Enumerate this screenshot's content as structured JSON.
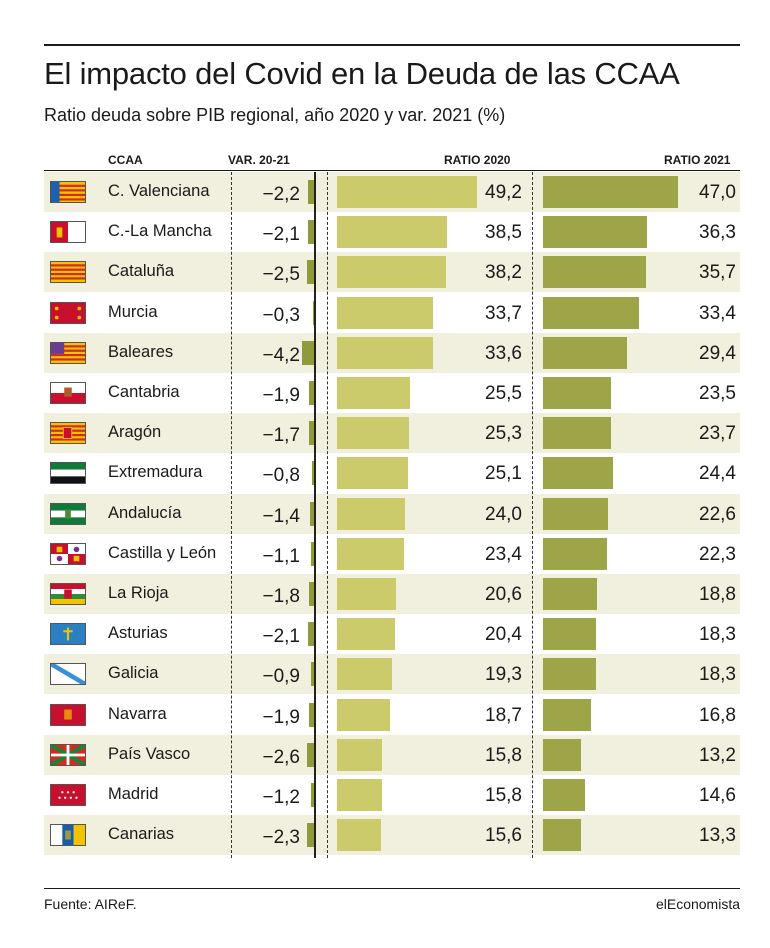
{
  "title": "El impacto del Covid en la Deuda de las CCAA",
  "subtitle": "Ratio deuda sobre PIB regional, año 2020 y var. 2021 (%)",
  "headers": {
    "ccaa": "CCAA",
    "var": "VAR. 20-21",
    "ratio2020": "RATIO 2020",
    "ratio2021": "RATIO 2021"
  },
  "footer": {
    "source": "Fuente: AIReF.",
    "brand": "elEconomista"
  },
  "colors": {
    "bar_2020": "#cccb6b",
    "bar_2021": "#9ea548",
    "bar_var": "#8e9a3c",
    "row_shade": "#f1efdd"
  },
  "chart_data": {
    "type": "table",
    "title": "El impacto del Covid en la Deuda de las CCAA",
    "subtitle": "Ratio deuda sobre PIB regional, año 2020 y var. 2021 (%)",
    "columns": [
      "CCAA",
      "VAR. 20-21",
      "RATIO 2020",
      "RATIO 2021"
    ],
    "rows": [
      {
        "name": "C. Valenciana",
        "flag": "valencia-flag",
        "var": -2.2,
        "var_label": "−2,2",
        "r2020": 49.2,
        "r2020_label": "49,2",
        "r2021": 47.0,
        "r2021_label": "47,0"
      },
      {
        "name": "C.-La Mancha",
        "flag": "castilla-la-mancha-flag",
        "var": -2.1,
        "var_label": "−2,1",
        "r2020": 38.5,
        "r2020_label": "38,5",
        "r2021": 36.3,
        "r2021_label": "36,3"
      },
      {
        "name": "Cataluña",
        "flag": "cataluna-flag",
        "var": -2.5,
        "var_label": "−2,5",
        "r2020": 38.2,
        "r2020_label": "38,2",
        "r2021": 35.7,
        "r2021_label": "35,7"
      },
      {
        "name": "Murcia",
        "flag": "murcia-flag",
        "var": -0.3,
        "var_label": "−0,3",
        "r2020": 33.7,
        "r2020_label": "33,7",
        "r2021": 33.4,
        "r2021_label": "33,4"
      },
      {
        "name": "Baleares",
        "flag": "baleares-flag",
        "var": -4.2,
        "var_label": "−4,2",
        "r2020": 33.6,
        "r2020_label": "33,6",
        "r2021": 29.4,
        "r2021_label": "29,4"
      },
      {
        "name": "Cantabria",
        "flag": "cantabria-flag",
        "var": -1.9,
        "var_label": "−1,9",
        "r2020": 25.5,
        "r2020_label": "25,5",
        "r2021": 23.5,
        "r2021_label": "23,5"
      },
      {
        "name": "Aragón",
        "flag": "aragon-flag",
        "var": -1.7,
        "var_label": "−1,7",
        "r2020": 25.3,
        "r2020_label": "25,3",
        "r2021": 23.7,
        "r2021_label": "23,7"
      },
      {
        "name": "Extremadura",
        "flag": "extremadura-flag",
        "var": -0.8,
        "var_label": "−0,8",
        "r2020": 25.1,
        "r2020_label": "25,1",
        "r2021": 24.4,
        "r2021_label": "24,4"
      },
      {
        "name": "Andalucía",
        "flag": "andalucia-flag",
        "var": -1.4,
        "var_label": "−1,4",
        "r2020": 24.0,
        "r2020_label": "24,0",
        "r2021": 22.6,
        "r2021_label": "22,6"
      },
      {
        "name": "Castilla y León",
        "flag": "castilla-y-leon-flag",
        "var": -1.1,
        "var_label": "−1,1",
        "r2020": 23.4,
        "r2020_label": "23,4",
        "r2021": 22.3,
        "r2021_label": "22,3"
      },
      {
        "name": "La Rioja",
        "flag": "la-rioja-flag",
        "var": -1.8,
        "var_label": "−1,8",
        "r2020": 20.6,
        "r2020_label": "20,6",
        "r2021": 18.8,
        "r2021_label": "18,8"
      },
      {
        "name": "Asturias",
        "flag": "asturias-flag",
        "var": -2.1,
        "var_label": "−2,1",
        "r2020": 20.4,
        "r2020_label": "20,4",
        "r2021": 18.3,
        "r2021_label": "18,3"
      },
      {
        "name": "Galicia",
        "flag": "galicia-flag",
        "var": -0.9,
        "var_label": "−0,9",
        "r2020": 19.3,
        "r2020_label": "19,3",
        "r2021": 18.3,
        "r2021_label": "18,3"
      },
      {
        "name": "Navarra",
        "flag": "navarra-flag",
        "var": -1.9,
        "var_label": "−1,9",
        "r2020": 18.7,
        "r2020_label": "18,7",
        "r2021": 16.8,
        "r2021_label": "16,8"
      },
      {
        "name": "País Vasco",
        "flag": "pais-vasco-flag",
        "var": -2.6,
        "var_label": "−2,6",
        "r2020": 15.8,
        "r2020_label": "15,8",
        "r2021": 13.2,
        "r2021_label": "13,2"
      },
      {
        "name": "Madrid",
        "flag": "madrid-flag",
        "var": -1.2,
        "var_label": "−1,2",
        "r2020": 15.8,
        "r2020_label": "15,8",
        "r2021": 14.6,
        "r2021_label": "14,6"
      },
      {
        "name": "Canarias",
        "flag": "canarias-flag",
        "var": -2.3,
        "var_label": "−2,3",
        "r2020": 15.6,
        "r2020_label": "15,6",
        "r2021": 13.3,
        "r2021_label": "13,3"
      }
    ]
  }
}
